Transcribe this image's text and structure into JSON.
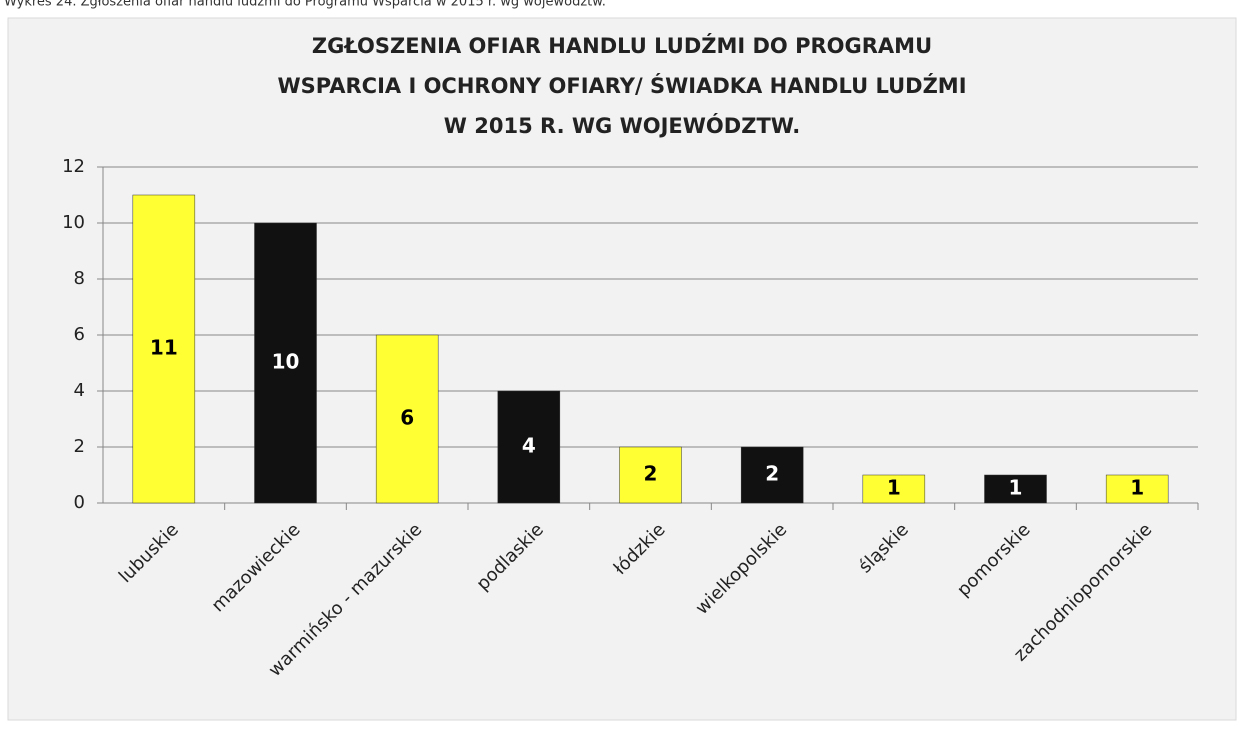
{
  "caption": "Wykres 24. Zgłoszenia ofiar handlu ludźmi do Programu Wsparcia w 2015 r. wg województw.",
  "chart_data": {
    "type": "bar",
    "title": [
      "ZGŁOSZENIA OFIAR HANDLU LUDŹMI DO PROGRAMU",
      "WSPARCIA I OCHRONY OFIARY/ ŚWIADKA HANDLU LUDŹMI",
      "W 2015 R. WG WOJEWÓDZTW."
    ],
    "categories": [
      "lubuskie",
      "mazowieckie",
      "warmińsko - mazurskie",
      "podlaskie",
      "łódzkie",
      "wielkopolskie",
      "śląskie",
      "pomorskie",
      "zachodniopomorskie"
    ],
    "values": [
      11,
      10,
      6,
      4,
      2,
      2,
      1,
      1,
      1
    ],
    "colors": [
      "#ffff33",
      "#111111",
      "#ffff33",
      "#111111",
      "#ffff33",
      "#111111",
      "#ffff33",
      "#111111",
      "#ffff33"
    ],
    "label_colors": [
      "#000000",
      "#ffffff",
      "#000000",
      "#ffffff",
      "#000000",
      "#ffffff",
      "#000000",
      "#ffffff",
      "#000000"
    ],
    "ylim": [
      0,
      12
    ],
    "yticks": [
      0,
      2,
      4,
      6,
      8,
      10,
      12
    ],
    "grid": true
  }
}
